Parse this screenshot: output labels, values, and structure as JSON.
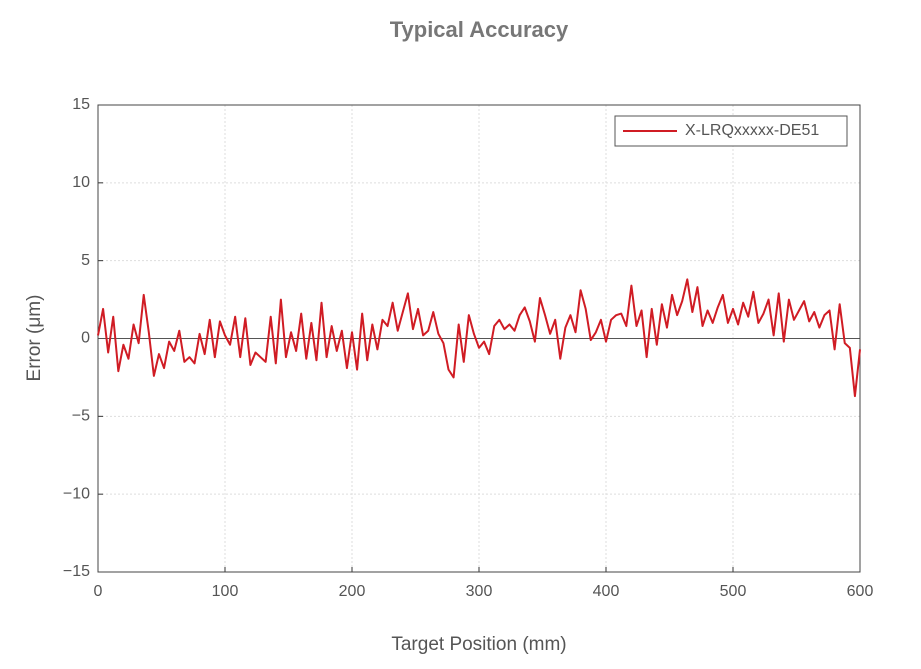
{
  "chart_data": {
    "type": "line",
    "title": "Typical Accuracy",
    "xlabel": "Target Position (mm)",
    "ylabel": "Error (μm)",
    "x": [
      0,
      4,
      8,
      12,
      16,
      20,
      24,
      28,
      32,
      36,
      40,
      44,
      48,
      52,
      56,
      60,
      64,
      68,
      72,
      76,
      80,
      84,
      88,
      92,
      96,
      100,
      104,
      108,
      112,
      116,
      120,
      124,
      128,
      132,
      136,
      140,
      144,
      148,
      152,
      156,
      160,
      164,
      168,
      172,
      176,
      180,
      184,
      188,
      192,
      196,
      200,
      204,
      208,
      212,
      216,
      220,
      224,
      228,
      232,
      236,
      240,
      244,
      248,
      252,
      256,
      260,
      264,
      268,
      272,
      276,
      280,
      284,
      288,
      292,
      296,
      300,
      304,
      308,
      312,
      316,
      320,
      324,
      328,
      332,
      336,
      340,
      344,
      348,
      352,
      356,
      360,
      364,
      368,
      372,
      376,
      380,
      384,
      388,
      392,
      396,
      400,
      404,
      408,
      412,
      416,
      420,
      424,
      428,
      432,
      436,
      440,
      444,
      448,
      452,
      456,
      460,
      464,
      468,
      472,
      476,
      480,
      484,
      488,
      492,
      496,
      500,
      504,
      508,
      512,
      516,
      520,
      524,
      528,
      532,
      536,
      540,
      544,
      548,
      552,
      556,
      560,
      564,
      568,
      572,
      576,
      580,
      584,
      588,
      592,
      596,
      600
    ],
    "series": [
      {
        "name": "X-LRQxxxxx-DE51",
        "color": "#d01c24",
        "values": [
          0.2,
          1.9,
          -0.9,
          1.4,
          -2.1,
          -0.4,
          -1.3,
          0.9,
          -0.3,
          2.8,
          0.4,
          -2.4,
          -1.0,
          -1.9,
          -0.2,
          -0.8,
          0.5,
          -1.5,
          -1.2,
          -1.6,
          0.3,
          -1.0,
          1.2,
          -1.2,
          1.1,
          0.2,
          -0.4,
          1.4,
          -1.2,
          1.3,
          -1.7,
          -0.9,
          -1.2,
          -1.5,
          1.4,
          -1.6,
          2.5,
          -1.2,
          0.4,
          -0.8,
          1.6,
          -1.3,
          1.0,
          -1.4,
          2.3,
          -1.2,
          0.8,
          -0.8,
          0.5,
          -1.9,
          0.4,
          -2.0,
          1.6,
          -1.4,
          0.9,
          -0.7,
          1.2,
          0.8,
          2.3,
          0.5,
          1.7,
          2.9,
          0.6,
          1.9,
          0.2,
          0.5,
          1.7,
          0.3,
          -0.3,
          -2.0,
          -2.5,
          0.9,
          -1.5,
          1.5,
          0.3,
          -0.6,
          -0.2,
          -1.0,
          0.8,
          1.2,
          0.6,
          0.9,
          0.5,
          1.5,
          2.0,
          1.1,
          -0.2,
          2.6,
          1.5,
          0.3,
          1.2,
          -1.3,
          0.7,
          1.5,
          0.4,
          3.1,
          1.9,
          -0.1,
          0.4,
          1.2,
          -0.2,
          1.2,
          1.5,
          1.6,
          0.8,
          3.4,
          0.8,
          1.8,
          -1.2,
          1.9,
          -0.4,
          2.2,
          0.7,
          2.8,
          1.5,
          2.4,
          3.8,
          1.7,
          3.3,
          0.8,
          1.8,
          1.0,
          2.0,
          2.8,
          1.0,
          1.9,
          0.9,
          2.3,
          1.4,
          3.0,
          1.0,
          1.6,
          2.5,
          0.2,
          2.9,
          -0.2,
          2.5,
          1.2,
          1.8,
          2.4,
          1.1,
          1.7,
          0.7,
          1.5,
          1.8,
          -0.7,
          2.2,
          -0.3,
          -0.6,
          -3.7,
          -0.7
        ]
      }
    ],
    "xlim": [
      0,
      600
    ],
    "xticks": [
      0,
      100,
      200,
      300,
      400,
      500,
      600
    ],
    "ylim": [
      -15,
      15
    ],
    "yticks": [
      {
        "value": -15,
        "label": "−15"
      },
      {
        "value": -10,
        "label": "−10"
      },
      {
        "value": -5,
        "label": "−5"
      },
      0,
      5,
      10,
      15
    ],
    "grid": true,
    "legend": "upper right"
  }
}
